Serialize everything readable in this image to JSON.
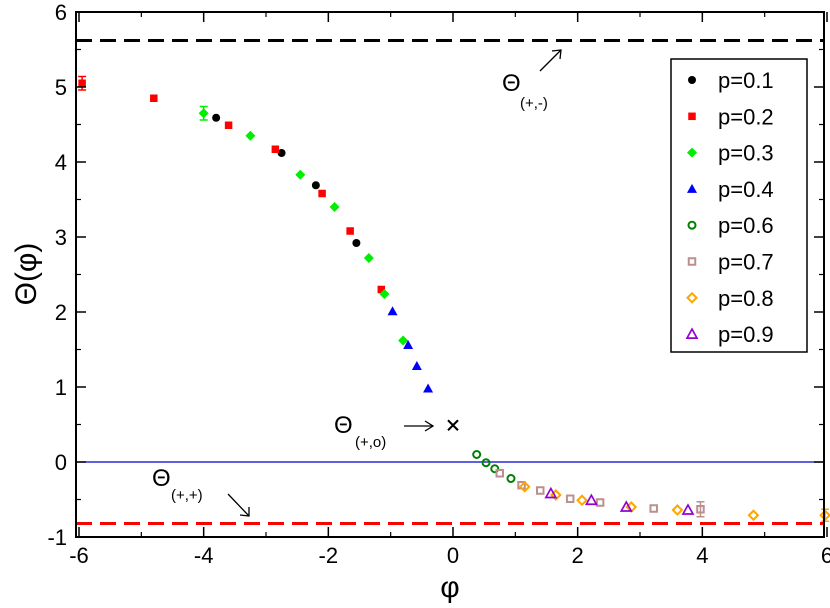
{
  "chart_data": {
    "type": "scatter",
    "title": "",
    "xlabel": "φ",
    "ylabel": "Θ(φ)",
    "xlim": [
      -6,
      6
    ],
    "ylim": [
      -1,
      6
    ],
    "xticks": [
      -6,
      -4,
      -2,
      0,
      2,
      4,
      6
    ],
    "yticks": [
      -1,
      0,
      1,
      2,
      3,
      4,
      5,
      6
    ],
    "xtick_labels": [
      "-6",
      "-4",
      "-2",
      "0",
      "2",
      "4",
      "6"
    ],
    "ytick_labels": [
      "-1",
      "0",
      "1",
      "2",
      "3",
      "4",
      "5",
      "6"
    ],
    "grid": false,
    "legend_position": "top-right",
    "series": [
      {
        "name": "p=0.1",
        "marker": "filled-circle",
        "color": "#000000",
        "x": [
          -3.8,
          -2.75,
          -2.2,
          -1.55
        ],
        "y": [
          4.59,
          4.12,
          3.69,
          2.92
        ]
      },
      {
        "name": "p=0.2",
        "marker": "filled-square",
        "color": "#ff0000",
        "x": [
          -5.95,
          -4.8,
          -3.6,
          -2.85,
          -2.1,
          -1.65,
          -1.15
        ],
        "y": [
          5.05,
          4.85,
          4.49,
          4.17,
          3.58,
          3.08,
          2.3
        ]
      },
      {
        "name": "p=0.3",
        "marker": "filled-diamond",
        "color": "#00ee00",
        "x": [
          -4.0,
          -3.25,
          -2.45,
          -1.9,
          -1.35,
          -1.1,
          -0.8
        ],
        "y": [
          4.65,
          4.35,
          3.83,
          3.4,
          2.72,
          2.24,
          1.62
        ]
      },
      {
        "name": "p=0.4",
        "marker": "filled-triangle",
        "color": "#0000ff",
        "x": [
          -0.97,
          -0.72,
          -0.58,
          -0.4
        ],
        "y": [
          2.01,
          1.56,
          1.28,
          0.98
        ]
      },
      {
        "name": "p=0.6",
        "marker": "open-circle",
        "color": "#008000",
        "x": [
          0.38,
          0.53,
          0.67,
          0.93
        ],
        "y": [
          0.1,
          -0.01,
          -0.09,
          -0.22
        ]
      },
      {
        "name": "p=0.7",
        "marker": "open-square",
        "color": "#bc8f8f",
        "x": [
          0.75,
          1.1,
          1.4,
          1.88,
          2.36,
          3.22,
          3.97
        ],
        "y": [
          -0.15,
          -0.31,
          -0.38,
          -0.49,
          -0.54,
          -0.62,
          -0.63
        ]
      },
      {
        "name": "p=0.8",
        "marker": "open-diamond",
        "color": "#ffa500",
        "x": [
          1.15,
          1.65,
          2.07,
          2.86,
          3.6,
          4.82,
          5.97
        ],
        "y": [
          -0.33,
          -0.44,
          -0.51,
          -0.6,
          -0.64,
          -0.71,
          -0.71
        ]
      },
      {
        "name": "p=0.9",
        "marker": "open-triangle",
        "color": "#9400d3",
        "x": [
          1.57,
          2.22,
          2.78,
          3.77
        ],
        "y": [
          -0.42,
          -0.51,
          -0.6,
          -0.64
        ]
      }
    ],
    "error_bars": [
      {
        "x": -5.95,
        "y": 5.05,
        "err": 0.09,
        "color": "#ff0000"
      },
      {
        "x": -4.0,
        "y": 4.65,
        "err": 0.09,
        "color": "#00ee00"
      },
      {
        "x": 3.97,
        "y": -0.63,
        "err": 0.1,
        "color": "#bc8f8f"
      },
      {
        "x": 5.97,
        "y": -0.71,
        "err": 0.08,
        "color": "#ffa500"
      }
    ],
    "reference_lines": [
      {
        "name": "Θ(+,-)",
        "y": 5.62,
        "color": "#000000",
        "style": "dashed"
      },
      {
        "name": "zero",
        "y": 0.0,
        "color": "#0000cd",
        "style": "solid"
      },
      {
        "name": "Θ(+,+)",
        "y": -0.82,
        "color": "#ff0000",
        "style": "dashed"
      }
    ],
    "special_points": [
      {
        "name": "Θ(+,0)",
        "x": 0.0,
        "y": 0.49,
        "marker": "cross",
        "color": "#000000"
      }
    ],
    "annotations": {
      "theta_pm": {
        "main": "Θ",
        "sub": "(+,-)"
      },
      "theta_p0": {
        "main": "Θ",
        "sub": "(+,o)"
      },
      "theta_pp": {
        "main": "Θ",
        "sub": "(+,+)"
      }
    }
  }
}
